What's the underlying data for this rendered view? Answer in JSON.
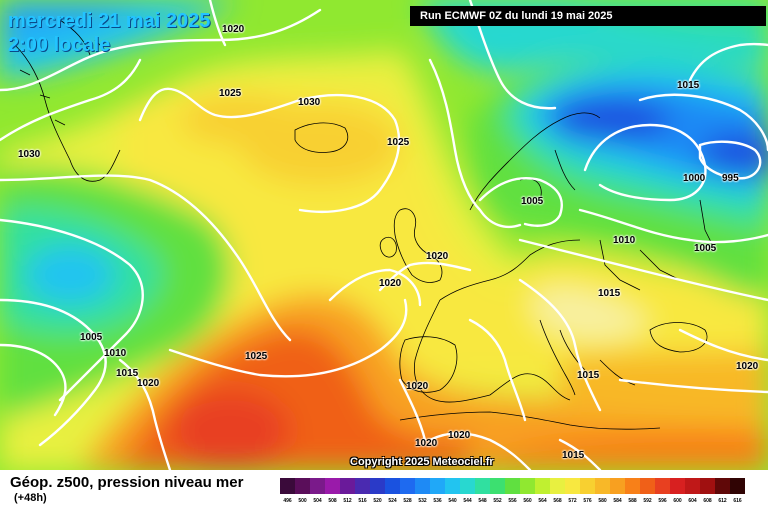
{
  "header": {
    "date": "mercredi 21 mai 2025",
    "time": "2:00 locale",
    "run": "Run ECMWF 0Z du lundi 19 mai 2025"
  },
  "copyright": "Copyright 2025 Meteociel.fr",
  "footer": {
    "parameter": "Géop. z500, pression niveau mer",
    "forecast_hours": "(+48h)"
  },
  "isobar_labels": [
    "1020",
    "1025",
    "1030",
    "1030",
    "1025",
    "1015",
    "1000",
    "995",
    "1005",
    "1010",
    "1005",
    "1020",
    "1020",
    "1015",
    "1005",
    "1010",
    "1015",
    "1020",
    "1025",
    "1015",
    "1020",
    "1020",
    "1020",
    "1015",
    "1020"
  ],
  "color_scale": {
    "labels": [
      "496",
      "500",
      "504",
      "508",
      "512",
      "516",
      "520",
      "524",
      "528",
      "532",
      "536",
      "540",
      "544",
      "548",
      "552",
      "556",
      "560",
      "564",
      "568",
      "572",
      "576",
      "580",
      "584",
      "588",
      "592",
      "596",
      "600",
      "604",
      "608",
      "612",
      "616"
    ],
    "colors": [
      "#3a0a3a",
      "#5a0e5a",
      "#7a1a8a",
      "#9a1aaa",
      "#6a1a9a",
      "#4a2ab0",
      "#2a3ac8",
      "#1a52e0",
      "#1e6af0",
      "#1e8af5",
      "#20a8f8",
      "#22c4f0",
      "#28d8d0",
      "#30e0a0",
      "#3ce070",
      "#60e040",
      "#90e830",
      "#c0f030",
      "#e8f040",
      "#f8e840",
      "#f8d030",
      "#f8b828",
      "#f8a020",
      "#f88018",
      "#f06018",
      "#e84020",
      "#d82020",
      "#c01818",
      "#a01010",
      "#600808",
      "#300404"
    ]
  }
}
